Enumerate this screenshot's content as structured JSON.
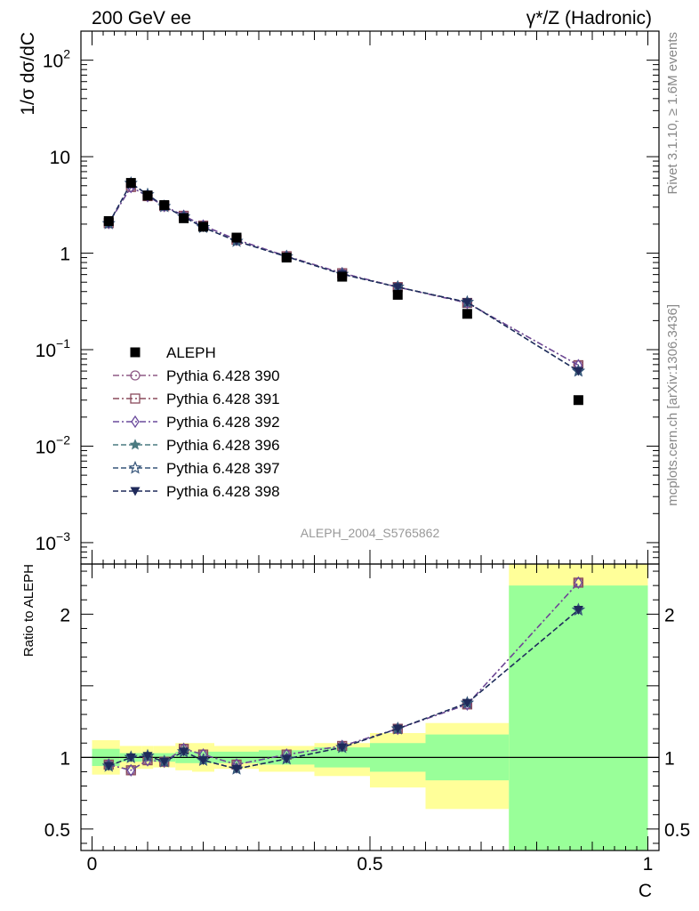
{
  "chart_data": [
    {
      "type": "scatter",
      "panel": "main",
      "title_left": "200 GeV ee",
      "title_right": "γ*/Z (Hadronic)",
      "ylabel": "1/σ  dσ/dC",
      "yscale": "log",
      "ylim": [
        0.0006,
        200
      ],
      "xlim": [
        -0.02,
        1.02
      ],
      "analysis_label": "ALEPH_2004_S5765862",
      "legend_position": "lower-left",
      "x": [
        0.03,
        0.07,
        0.1,
        0.13,
        0.165,
        0.2,
        0.26,
        0.35,
        0.45,
        0.55,
        0.675,
        0.875
      ],
      "data": {
        "name": "ALEPH",
        "color": "#000000",
        "values": [
          2.15,
          5.35,
          3.95,
          3.15,
          2.3,
          1.88,
          1.45,
          0.9,
          0.57,
          0.37,
          0.235,
          0.03
        ]
      },
      "series": [
        {
          "name": "Pythia 6.428 390",
          "color": "#8f5a86",
          "marker": "open-circle",
          "dash": "dashdot",
          "values": [
            2.05,
            4.85,
            3.9,
            3.08,
            2.44,
            1.93,
            1.38,
            0.93,
            0.62,
            0.445,
            0.305,
            0.069
          ]
        },
        {
          "name": "Pythia 6.428 391",
          "color": "#8a4a5c",
          "marker": "open-square",
          "dash": "dashdot",
          "values": [
            2.05,
            4.85,
            3.9,
            3.08,
            2.44,
            1.93,
            1.38,
            0.93,
            0.62,
            0.445,
            0.305,
            0.069
          ]
        },
        {
          "name": "Pythia 6.428 392",
          "color": "#6a4a9c",
          "marker": "open-diamond",
          "dash": "dashdot",
          "values": [
            2.05,
            4.85,
            3.9,
            3.08,
            2.44,
            1.93,
            1.38,
            0.93,
            0.62,
            0.445,
            0.305,
            0.069
          ]
        },
        {
          "name": "Pythia 6.428 396",
          "color": "#4a7a80",
          "marker": "filled-star",
          "dash": "dashed",
          "values": [
            2.03,
            5.3,
            4.05,
            3.05,
            2.38,
            1.85,
            1.33,
            0.92,
            0.605,
            0.445,
            0.31,
            0.06
          ]
        },
        {
          "name": "Pythia 6.428 397",
          "color": "#36557a",
          "marker": "open-star",
          "dash": "dashed",
          "values": [
            2.03,
            5.3,
            4.05,
            3.05,
            2.38,
            1.85,
            1.33,
            0.92,
            0.605,
            0.445,
            0.31,
            0.06
          ]
        },
        {
          "name": "Pythia 6.428 398",
          "color": "#1f2a5a",
          "marker": "filled-triangle-down",
          "dash": "dashed",
          "values": [
            2.03,
            5.3,
            4.05,
            3.05,
            2.38,
            1.85,
            1.33,
            0.92,
            0.605,
            0.445,
            0.31,
            0.06
          ]
        }
      ]
    },
    {
      "type": "scatter",
      "panel": "ratio",
      "xlabel": "C",
      "ylabel": "Ratio to ALEPH",
      "ylim": [
        0.35,
        2.35
      ],
      "xlim": [
        -0.02,
        1.02
      ],
      "reference_line": 1,
      "bands": {
        "edges": [
          0.0,
          0.05,
          0.09,
          0.11,
          0.15,
          0.18,
          0.22,
          0.3,
          0.4,
          0.5,
          0.6,
          0.75,
          1.0
        ],
        "stat_color": "#99ff99",
        "syst_color": "#ffff99",
        "stat": [
          [
            0.94,
            1.06
          ],
          [
            0.97,
            1.03
          ],
          [
            0.97,
            1.03
          ],
          [
            0.97,
            1.03
          ],
          [
            0.96,
            1.04
          ],
          [
            0.96,
            1.04
          ],
          [
            0.96,
            1.04
          ],
          [
            0.95,
            1.05
          ],
          [
            0.93,
            1.07
          ],
          [
            0.9,
            1.1
          ],
          [
            0.84,
            1.16
          ],
          [
            0.35,
            2.2
          ]
        ],
        "syst": [
          [
            0.88,
            1.12
          ],
          [
            0.92,
            1.08
          ],
          [
            0.92,
            1.08
          ],
          [
            0.93,
            1.08
          ],
          [
            0.91,
            1.1
          ],
          [
            0.9,
            1.1
          ],
          [
            0.92,
            1.08
          ],
          [
            0.9,
            1.08
          ],
          [
            0.87,
            1.1
          ],
          [
            0.79,
            1.17
          ],
          [
            0.64,
            1.24
          ],
          [
            0.35,
            2.35
          ]
        ]
      },
      "x": [
        0.03,
        0.07,
        0.1,
        0.13,
        0.165,
        0.2,
        0.26,
        0.35,
        0.45,
        0.55,
        0.675,
        0.875
      ],
      "series": [
        {
          "name": "Pythia 6.428 390",
          "color": "#8f5a86",
          "marker": "open-circle",
          "dash": "dashdot",
          "values": [
            0.95,
            0.91,
            0.98,
            0.97,
            1.06,
            1.02,
            0.95,
            1.02,
            1.08,
            1.2,
            1.37,
            2.22
          ]
        },
        {
          "name": "Pythia 6.428 391",
          "color": "#8a4a5c",
          "marker": "open-square",
          "dash": "dashdot",
          "values": [
            0.95,
            0.91,
            0.98,
            0.97,
            1.06,
            1.02,
            0.95,
            1.02,
            1.08,
            1.2,
            1.37,
            2.22
          ]
        },
        {
          "name": "Pythia 6.428 392",
          "color": "#6a4a9c",
          "marker": "open-diamond",
          "dash": "dashdot",
          "values": [
            0.95,
            0.91,
            0.98,
            0.97,
            1.06,
            1.02,
            0.95,
            1.02,
            1.08,
            1.2,
            1.37,
            2.22
          ]
        },
        {
          "name": "Pythia 6.428 396",
          "color": "#4a7a80",
          "marker": "filled-star",
          "dash": "dashed",
          "values": [
            0.94,
            1.0,
            1.01,
            0.97,
            1.04,
            0.98,
            0.92,
            0.99,
            1.07,
            1.2,
            1.38,
            2.03
          ]
        },
        {
          "name": "Pythia 6.428 397",
          "color": "#36557a",
          "marker": "open-star",
          "dash": "dashed",
          "values": [
            0.94,
            1.0,
            1.01,
            0.97,
            1.04,
            0.98,
            0.92,
            0.99,
            1.07,
            1.2,
            1.38,
            2.03
          ]
        },
        {
          "name": "Pythia 6.428 398",
          "color": "#1f2a5a",
          "marker": "filled-triangle-down",
          "dash": "dashed",
          "values": [
            0.94,
            1.0,
            1.01,
            0.97,
            1.04,
            0.98,
            0.92,
            0.99,
            1.07,
            1.2,
            1.38,
            2.03
          ]
        }
      ]
    }
  ],
  "labels": {
    "main_y_ticks": [
      {
        "value": 0.001,
        "base": "10",
        "exp": "−3"
      },
      {
        "value": 0.01,
        "base": "10",
        "exp": "−2"
      },
      {
        "value": 0.1,
        "base": "10",
        "exp": "−1"
      },
      {
        "value": 1,
        "base": "1",
        "exp": ""
      },
      {
        "value": 10,
        "base": "10",
        "exp": ""
      },
      {
        "value": 100,
        "base": "10",
        "exp": "2"
      }
    ],
    "ratio_y_ticks": [
      {
        "value": 0.5,
        "text": "0.5"
      },
      {
        "value": 1,
        "text": "1"
      },
      {
        "value": 2,
        "text": "2"
      }
    ],
    "x_ticks": [
      {
        "value": 0,
        "text": "0"
      },
      {
        "value": 0.5,
        "text": "0.5"
      },
      {
        "value": 1,
        "text": "1"
      }
    ],
    "rivet_label": "Rivet 3.1.10, ≥ 1.6M events",
    "mcplots_label": "mcplots.cern.ch [arXiv:1306.3436]"
  }
}
